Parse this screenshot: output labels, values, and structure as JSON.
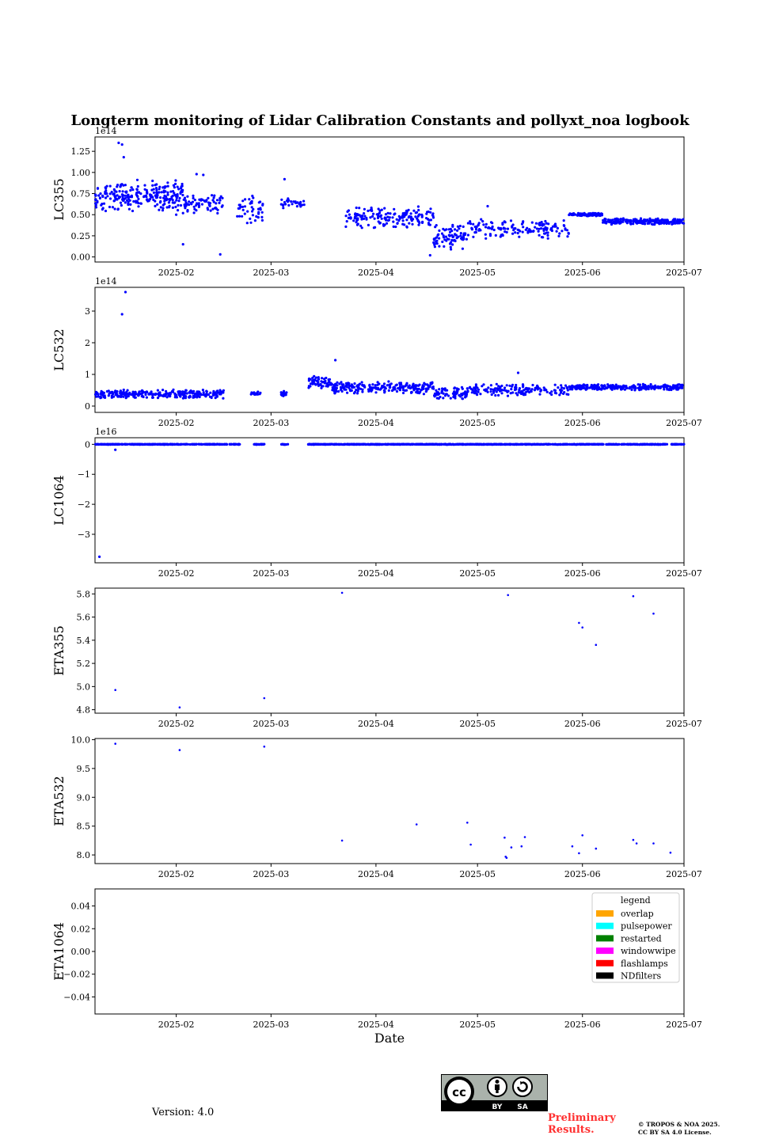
{
  "title": "Longterm monitoring of Lidar Calibration Constants and pollyxt_noa logbook",
  "xlabel": "Date",
  "version": "Version: 4.0",
  "preliminary": [
    "Preliminary",
    "Results."
  ],
  "copyright": [
    "© TROPOS & NOA 2025.",
    "CC BY SA 4.0 License."
  ],
  "cc_badge": {
    "by": "BY",
    "sa": "SA",
    "cc": "cc"
  },
  "colors": {
    "points": "#0000ff",
    "axes": "#000000",
    "prelim": "#ff3030"
  },
  "chart_data": [
    {
      "type": "scatter",
      "name": "LC355",
      "ylabel": "LC355",
      "offset_label": "1e14",
      "ylim": [
        -0.06,
        1.42
      ],
      "yticks": [
        0,
        0.25,
        0.5,
        0.75,
        1.0,
        1.25
      ],
      "ytick_labels": [
        "0.00",
        "0.25",
        "0.50",
        "0.75",
        "1.00",
        "1.25"
      ],
      "xticks": [
        "2025-02",
        "2025-03",
        "2025-04",
        "2025-05",
        "2025-06",
        "2025-07"
      ],
      "segments": [
        {
          "from": 0,
          "to": 26,
          "level": 0.72,
          "spread": 0.2,
          "n": 260
        },
        {
          "from": 26,
          "to": 38,
          "level": 0.63,
          "spread": 0.12,
          "n": 70
        },
        {
          "from": 42,
          "to": 50,
          "level": 0.56,
          "spread": 0.2,
          "n": 45
        },
        {
          "from": 55,
          "to": 62,
          "level": 0.64,
          "spread": 0.07,
          "n": 30
        },
        {
          "from": 74,
          "to": 100,
          "level": 0.47,
          "spread": 0.14,
          "n": 170
        },
        {
          "from": 100,
          "to": 110,
          "level": 0.24,
          "spread": 0.16,
          "n": 80
        },
        {
          "from": 110,
          "to": 140,
          "level": 0.33,
          "spread": 0.12,
          "n": 150
        },
        {
          "from": 140,
          "to": 150,
          "level": 0.5,
          "spread": 0.02,
          "n": 110
        },
        {
          "from": 150,
          "to": 174,
          "level": 0.42,
          "spread": 0.04,
          "n": 220
        }
      ],
      "extras": [
        [
          7,
          1.35
        ],
        [
          8,
          1.33
        ],
        [
          8.5,
          1.18
        ],
        [
          17,
          0.9
        ],
        [
          24,
          0.5
        ],
        [
          26,
          0.15
        ],
        [
          30,
          0.98
        ],
        [
          32,
          0.97
        ],
        [
          37,
          0.03
        ],
        [
          56,
          0.92
        ],
        [
          99,
          0.02
        ],
        [
          116,
          0.6
        ]
      ]
    },
    {
      "type": "scatter",
      "name": "LC532",
      "ylabel": "LC532",
      "offset_label": "1e14",
      "ylim": [
        -0.2,
        3.75
      ],
      "yticks": [
        0,
        1,
        2,
        3
      ],
      "ytick_labels": [
        "0",
        "1",
        "2",
        "3"
      ],
      "xticks": [
        "2025-02",
        "2025-03",
        "2025-04",
        "2025-05",
        "2025-06",
        "2025-07"
      ],
      "segments": [
        {
          "from": 0,
          "to": 38,
          "level": 0.38,
          "spread": 0.15,
          "n": 280
        },
        {
          "from": 46,
          "to": 49,
          "level": 0.4,
          "spread": 0.06,
          "n": 15
        },
        {
          "from": 55,
          "to": 57,
          "level": 0.4,
          "spread": 0.1,
          "n": 15
        },
        {
          "from": 63,
          "to": 70,
          "level": 0.75,
          "spread": 0.22,
          "n": 60
        },
        {
          "from": 70,
          "to": 100,
          "level": 0.58,
          "spread": 0.22,
          "n": 220
        },
        {
          "from": 100,
          "to": 110,
          "level": 0.4,
          "spread": 0.25,
          "n": 80
        },
        {
          "from": 110,
          "to": 140,
          "level": 0.5,
          "spread": 0.2,
          "n": 160
        },
        {
          "from": 140,
          "to": 174,
          "level": 0.6,
          "spread": 0.1,
          "n": 280
        }
      ],
      "extras": [
        [
          8,
          2.9
        ],
        [
          9,
          3.6
        ],
        [
          71,
          1.45
        ],
        [
          125,
          1.05
        ]
      ]
    },
    {
      "type": "scatter",
      "name": "LC1064",
      "ylabel": "LC1064",
      "offset_label": "1e16",
      "ylim": [
        -3.95,
        0.22
      ],
      "yticks": [
        -3,
        -2,
        -1,
        0
      ],
      "ytick_labels": [
        "−3",
        "−2",
        "−1",
        "0"
      ],
      "xticks": [
        "2025-02",
        "2025-03",
        "2025-04",
        "2025-05",
        "2025-06",
        "2025-07"
      ],
      "segments": [
        {
          "from": 0,
          "to": 30,
          "level": 0.0,
          "spread": 0.01,
          "n": 260
        },
        {
          "from": 30,
          "to": 43,
          "level": 0.0,
          "spread": 0.01,
          "n": 80
        },
        {
          "from": 47,
          "to": 50,
          "level": 0.0,
          "spread": 0.01,
          "n": 20
        },
        {
          "from": 55,
          "to": 57,
          "level": 0.0,
          "spread": 0.01,
          "n": 12
        },
        {
          "from": 63,
          "to": 174,
          "level": 0.0,
          "spread": 0.01,
          "n": 900
        }
      ],
      "extras": [
        [
          1.3,
          -3.75
        ],
        [
          6,
          -0.18
        ]
      ]
    },
    {
      "type": "scatter",
      "name": "ETA355",
      "ylabel": "ETA355",
      "ylim": [
        4.77,
        5.85
      ],
      "yticks": [
        4.8,
        5.0,
        5.2,
        5.4,
        5.6,
        5.8
      ],
      "ytick_labels": [
        "4.8",
        "5.0",
        "5.2",
        "5.4",
        "5.6",
        "5.8"
      ],
      "xticks": [
        "2025-02",
        "2025-03",
        "2025-04",
        "2025-05",
        "2025-06",
        "2025-07"
      ],
      "points": [
        [
          6,
          4.97
        ],
        [
          25,
          4.82
        ],
        [
          50,
          4.9
        ],
        [
          73,
          5.81
        ],
        [
          122,
          5.79
        ],
        [
          143,
          5.55
        ],
        [
          144,
          5.51
        ],
        [
          148,
          5.36
        ],
        [
          159,
          5.78
        ],
        [
          165,
          5.63
        ]
      ]
    },
    {
      "type": "scatter",
      "name": "ETA532",
      "ylabel": "ETA532",
      "ylim": [
        7.85,
        10.02
      ],
      "yticks": [
        8.0,
        8.5,
        9.0,
        9.5,
        10.0
      ],
      "ytick_labels": [
        "8.0",
        "8.5",
        "9.0",
        "9.5",
        "10.0"
      ],
      "xticks": [
        "2025-02",
        "2025-03",
        "2025-04",
        "2025-05",
        "2025-06",
        "2025-07"
      ],
      "points": [
        [
          6,
          9.93
        ],
        [
          25,
          9.82
        ],
        [
          50,
          9.88
        ],
        [
          73,
          8.25
        ],
        [
          95,
          8.53
        ],
        [
          110,
          8.56
        ],
        [
          111,
          8.18
        ],
        [
          121,
          8.3
        ],
        [
          121.3,
          7.97
        ],
        [
          121.6,
          7.95
        ],
        [
          123,
          8.13
        ],
        [
          126,
          8.15
        ],
        [
          127,
          8.31
        ],
        [
          141,
          8.15
        ],
        [
          143,
          8.03
        ],
        [
          144,
          8.34
        ],
        [
          148,
          8.11
        ],
        [
          159,
          8.26
        ],
        [
          160,
          8.2
        ],
        [
          165,
          8.2
        ],
        [
          170,
          8.04
        ]
      ]
    },
    {
      "type": "scatter",
      "name": "ETA1064",
      "ylabel": "ETA1064",
      "ylim": [
        -0.055,
        0.055
      ],
      "yticks": [
        -0.04,
        -0.02,
        0.0,
        0.02,
        0.04
      ],
      "ytick_labels": [
        "−0.04",
        "−0.02",
        "0.00",
        "0.02",
        "0.04"
      ],
      "xticks": [
        "2025-02",
        "2025-03",
        "2025-04",
        "2025-05",
        "2025-06",
        "2025-07"
      ],
      "points": [],
      "legend": {
        "title": "legend",
        "placement": "top-right",
        "entries": [
          {
            "label": "overlap",
            "color": "#ffa500"
          },
          {
            "label": "pulsepower",
            "color": "#00ffff"
          },
          {
            "label": "restarted",
            "color": "#008000"
          },
          {
            "label": "windowwipe",
            "color": "#ff00ff"
          },
          {
            "label": "flashlamps",
            "color": "#ff0000"
          },
          {
            "label": "NDfilters",
            "color": "#000000"
          }
        ]
      }
    }
  ],
  "x_axis": {
    "start": "2025-01-08",
    "end": "2025-07-04",
    "tick_days": [
      24,
      52,
      83,
      113,
      144,
      174
    ]
  }
}
